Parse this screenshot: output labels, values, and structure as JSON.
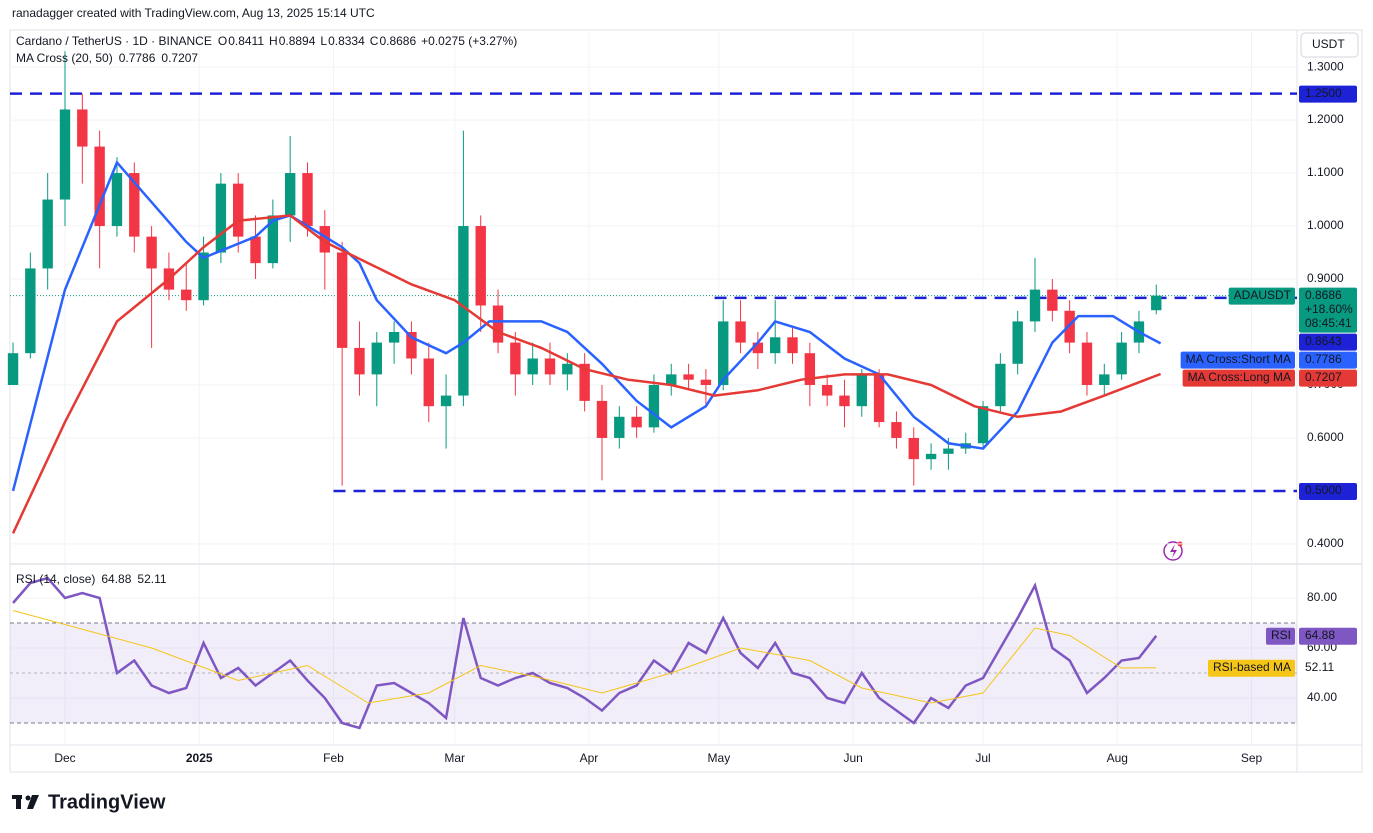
{
  "header": {
    "attribution": "ranadagger created with TradingView.com, Aug 13, 2025 15:14 UTC"
  },
  "footer": {
    "brand": "TradingView"
  },
  "chart_data": {
    "type": "candlestick",
    "title": "Cardano / TetherUS · 1D · BINANCE",
    "ohlc_legend": [
      {
        "label": "O",
        "value": 0.8411
      },
      {
        "label": "H",
        "value": 0.8894
      },
      {
        "label": "L",
        "value": 0.8334
      },
      {
        "label": "C",
        "value": 0.8686
      }
    ],
    "change": "+0.0275 (+3.27%)",
    "symbol": "ADAUSDT",
    "last_change": "+18.60%",
    "countdown": "08:45:41",
    "currency": "USDT",
    "up_color": "#089981",
    "down_color": "#f23645",
    "x": [
      -12,
      -8,
      -4,
      0,
      4,
      8,
      12,
      16,
      20,
      24,
      28,
      32,
      36,
      40,
      44,
      48,
      52,
      56,
      60,
      64,
      68,
      72,
      76,
      80,
      84,
      88,
      92,
      96,
      100,
      104,
      108,
      112,
      116,
      120,
      124,
      128,
      132,
      136,
      140,
      144,
      148,
      152,
      156,
      160,
      164,
      168,
      172,
      176,
      180,
      184,
      188,
      192,
      196,
      200,
      204,
      208,
      212,
      216,
      220,
      224,
      228,
      232,
      236,
      240,
      244,
      248,
      252
    ],
    "open": [
      0.7,
      0.76,
      0.92,
      1.05,
      1.22,
      1.15,
      1.0,
      1.1,
      0.98,
      0.92,
      0.88,
      0.86,
      0.95,
      1.08,
      0.98,
      0.93,
      1.02,
      1.1,
      1.0,
      0.95,
      0.77,
      0.72,
      0.78,
      0.8,
      0.75,
      0.66,
      0.68,
      1.0,
      0.85,
      0.78,
      0.72,
      0.75,
      0.72,
      0.74,
      0.67,
      0.6,
      0.64,
      0.62,
      0.7,
      0.72,
      0.71,
      0.7,
      0.82,
      0.78,
      0.76,
      0.79,
      0.76,
      0.7,
      0.68,
      0.66,
      0.72,
      0.63,
      0.6,
      0.56,
      0.57,
      0.58,
      0.59,
      0.66,
      0.74,
      0.82,
      0.88,
      0.84,
      0.78,
      0.7,
      0.72,
      0.78,
      0.8411
    ],
    "high": [
      0.78,
      0.95,
      1.1,
      1.33,
      1.25,
      1.18,
      1.13,
      1.12,
      1.0,
      0.95,
      0.93,
      0.98,
      1.1,
      1.1,
      1.02,
      1.05,
      1.17,
      1.12,
      1.03,
      0.97,
      0.82,
      0.8,
      0.82,
      0.82,
      0.78,
      0.72,
      1.18,
      1.02,
      0.88,
      0.8,
      0.78,
      0.78,
      0.76,
      0.76,
      0.7,
      0.66,
      0.66,
      0.72,
      0.74,
      0.74,
      0.73,
      0.86,
      0.86,
      0.8,
      0.86,
      0.81,
      0.78,
      0.72,
      0.71,
      0.73,
      0.73,
      0.65,
      0.62,
      0.59,
      0.6,
      0.61,
      0.67,
      0.76,
      0.84,
      0.94,
      0.9,
      0.86,
      0.8,
      0.74,
      0.8,
      0.84,
      0.8894
    ],
    "low": [
      0.7,
      0.75,
      0.88,
      1.0,
      1.08,
      0.92,
      0.98,
      0.95,
      0.77,
      0.86,
      0.84,
      0.85,
      0.93,
      0.95,
      0.9,
      0.92,
      0.97,
      0.98,
      0.88,
      0.51,
      0.68,
      0.66,
      0.74,
      0.72,
      0.63,
      0.58,
      0.66,
      0.8,
      0.76,
      0.68,
      0.7,
      0.7,
      0.69,
      0.65,
      0.52,
      0.58,
      0.6,
      0.61,
      0.68,
      0.69,
      0.66,
      0.69,
      0.76,
      0.73,
      0.74,
      0.74,
      0.66,
      0.66,
      0.62,
      0.64,
      0.62,
      0.58,
      0.51,
      0.54,
      0.54,
      0.57,
      0.58,
      0.65,
      0.72,
      0.8,
      0.82,
      0.76,
      0.68,
      0.68,
      0.71,
      0.76,
      0.8334
    ],
    "close": [
      0.76,
      0.92,
      1.05,
      1.22,
      1.15,
      1.0,
      1.1,
      0.98,
      0.92,
      0.88,
      0.86,
      0.95,
      1.08,
      0.98,
      0.93,
      1.02,
      1.1,
      1.0,
      0.95,
      0.77,
      0.72,
      0.78,
      0.8,
      0.75,
      0.66,
      0.68,
      1.0,
      0.85,
      0.78,
      0.72,
      0.75,
      0.72,
      0.74,
      0.67,
      0.6,
      0.64,
      0.62,
      0.7,
      0.72,
      0.71,
      0.7,
      0.82,
      0.78,
      0.76,
      0.79,
      0.76,
      0.7,
      0.68,
      0.66,
      0.72,
      0.63,
      0.6,
      0.56,
      0.57,
      0.58,
      0.59,
      0.66,
      0.74,
      0.82,
      0.88,
      0.84,
      0.78,
      0.7,
      0.72,
      0.78,
      0.82,
      0.8686
    ],
    "xlim": [
      -12.7,
      284.5
    ],
    "xticks": [
      {
        "value": 0,
        "label": "Dec"
      },
      {
        "value": 31,
        "label": "2025"
      },
      {
        "value": 62,
        "label": "Feb"
      },
      {
        "value": 90,
        "label": "Mar"
      },
      {
        "value": 121,
        "label": "Apr"
      },
      {
        "value": 151,
        "label": "May"
      },
      {
        "value": 182,
        "label": "Jun"
      },
      {
        "value": 212,
        "label": "Jul"
      },
      {
        "value": 243,
        "label": "Aug"
      },
      {
        "value": 274,
        "label": "Sep"
      }
    ],
    "ylim": [
      0.364,
      1.37
    ],
    "yticks": [
      {
        "value": 1.3,
        "label": "1.3000"
      },
      {
        "value": 1.2,
        "label": "1.2000"
      },
      {
        "value": 1.1,
        "label": "1.1000"
      },
      {
        "value": 1.0,
        "label": "1.0000"
      },
      {
        "value": 0.9,
        "label": "0.9000"
      },
      {
        "value": 0.7,
        "label": "0.7000"
      },
      {
        "value": 0.6,
        "label": "0.6000"
      },
      {
        "value": 0.4,
        "label": "0.4000"
      }
    ],
    "grid": true,
    "levels": [
      {
        "value": 1.25,
        "label": "1.2500",
        "color": "#1e22d6"
      },
      {
        "value": 0.8643,
        "x_start": 150,
        "color": "#1e22d6"
      },
      {
        "value": 0.5,
        "label": "0.5000",
        "x_start": 62,
        "color": "#1e22d6"
      }
    ],
    "indicator": "MA Cross (20, 50)",
    "series": [
      {
        "name": "MA Cross:Short MA",
        "color": "#2962ff",
        "x": [
          -12,
          0,
          12,
          28,
          32,
          44,
          48,
          52,
          56,
          64,
          68,
          72,
          80,
          88,
          92,
          98,
          110,
          116,
          124,
          132,
          140,
          148,
          152,
          160,
          164,
          172,
          180,
          188,
          196,
          204,
          212,
          220,
          228,
          234,
          242,
          248,
          253
        ],
        "values": [
          0.5,
          0.88,
          1.12,
          0.97,
          0.94,
          0.98,
          1.01,
          1.02,
          1.0,
          0.96,
          0.93,
          0.86,
          0.79,
          0.76,
          0.78,
          0.82,
          0.82,
          0.8,
          0.74,
          0.67,
          0.62,
          0.66,
          0.71,
          0.78,
          0.82,
          0.8,
          0.75,
          0.72,
          0.64,
          0.59,
          0.58,
          0.65,
          0.78,
          0.83,
          0.83,
          0.8,
          0.7786
        ]
      },
      {
        "name": "MA Cross:Long MA",
        "color": "#e53935",
        "x": [
          -12,
          0,
          12,
          24,
          32,
          40,
          52,
          60,
          70,
          80,
          90,
          100,
          110,
          120,
          130,
          140,
          150,
          160,
          170,
          180,
          190,
          200,
          210,
          220,
          230,
          240,
          253
        ],
        "values": [
          0.42,
          0.63,
          0.82,
          0.9,
          0.96,
          1.01,
          1.02,
          0.97,
          0.93,
          0.89,
          0.86,
          0.8,
          0.77,
          0.73,
          0.71,
          0.7,
          0.68,
          0.69,
          0.71,
          0.72,
          0.72,
          0.7,
          0.66,
          0.64,
          0.65,
          0.68,
          0.7207
        ]
      }
    ],
    "rsi": {
      "type": "line",
      "title": "RSI (14, close)",
      "ylim": [
        21.2,
        93.2
      ],
      "yticks": [
        {
          "value": 80,
          "label": "80.00"
        },
        {
          "value": 60,
          "label": "60.00"
        },
        {
          "value": 40,
          "label": "40.00"
        }
      ],
      "band": [
        30,
        70
      ],
      "midline": 50,
      "band_color": "#7e57c2",
      "series": [
        {
          "name": "RSI",
          "color": "#7e57c2",
          "values": [
            78,
            86,
            88,
            80,
            82,
            80,
            50,
            55,
            45,
            42,
            44,
            62,
            48,
            52,
            45,
            50,
            55,
            47,
            40,
            30,
            28,
            45,
            46,
            42,
            38,
            32,
            72,
            48,
            45,
            48,
            50,
            46,
            44,
            40,
            35,
            42,
            45,
            55,
            50,
            62,
            58,
            72,
            58,
            52,
            62,
            50,
            48,
            40,
            38,
            50,
            40,
            35,
            30,
            40,
            36,
            45,
            48,
            60,
            72,
            85,
            60,
            55,
            42,
            48,
            55,
            56,
            64.88
          ]
        },
        {
          "name": "RSI-based MA",
          "color": "#f5c518",
          "x": [
            -12,
            20,
            40,
            56,
            70,
            84,
            96,
            110,
            124,
            140,
            156,
            172,
            184,
            200,
            212,
            224,
            232,
            244,
            252
          ],
          "values": [
            75,
            60,
            47,
            53,
            38,
            42,
            53,
            48,
            42,
            50,
            60,
            55,
            44,
            38,
            42,
            68,
            65,
            52,
            52.11
          ]
        }
      ]
    }
  }
}
